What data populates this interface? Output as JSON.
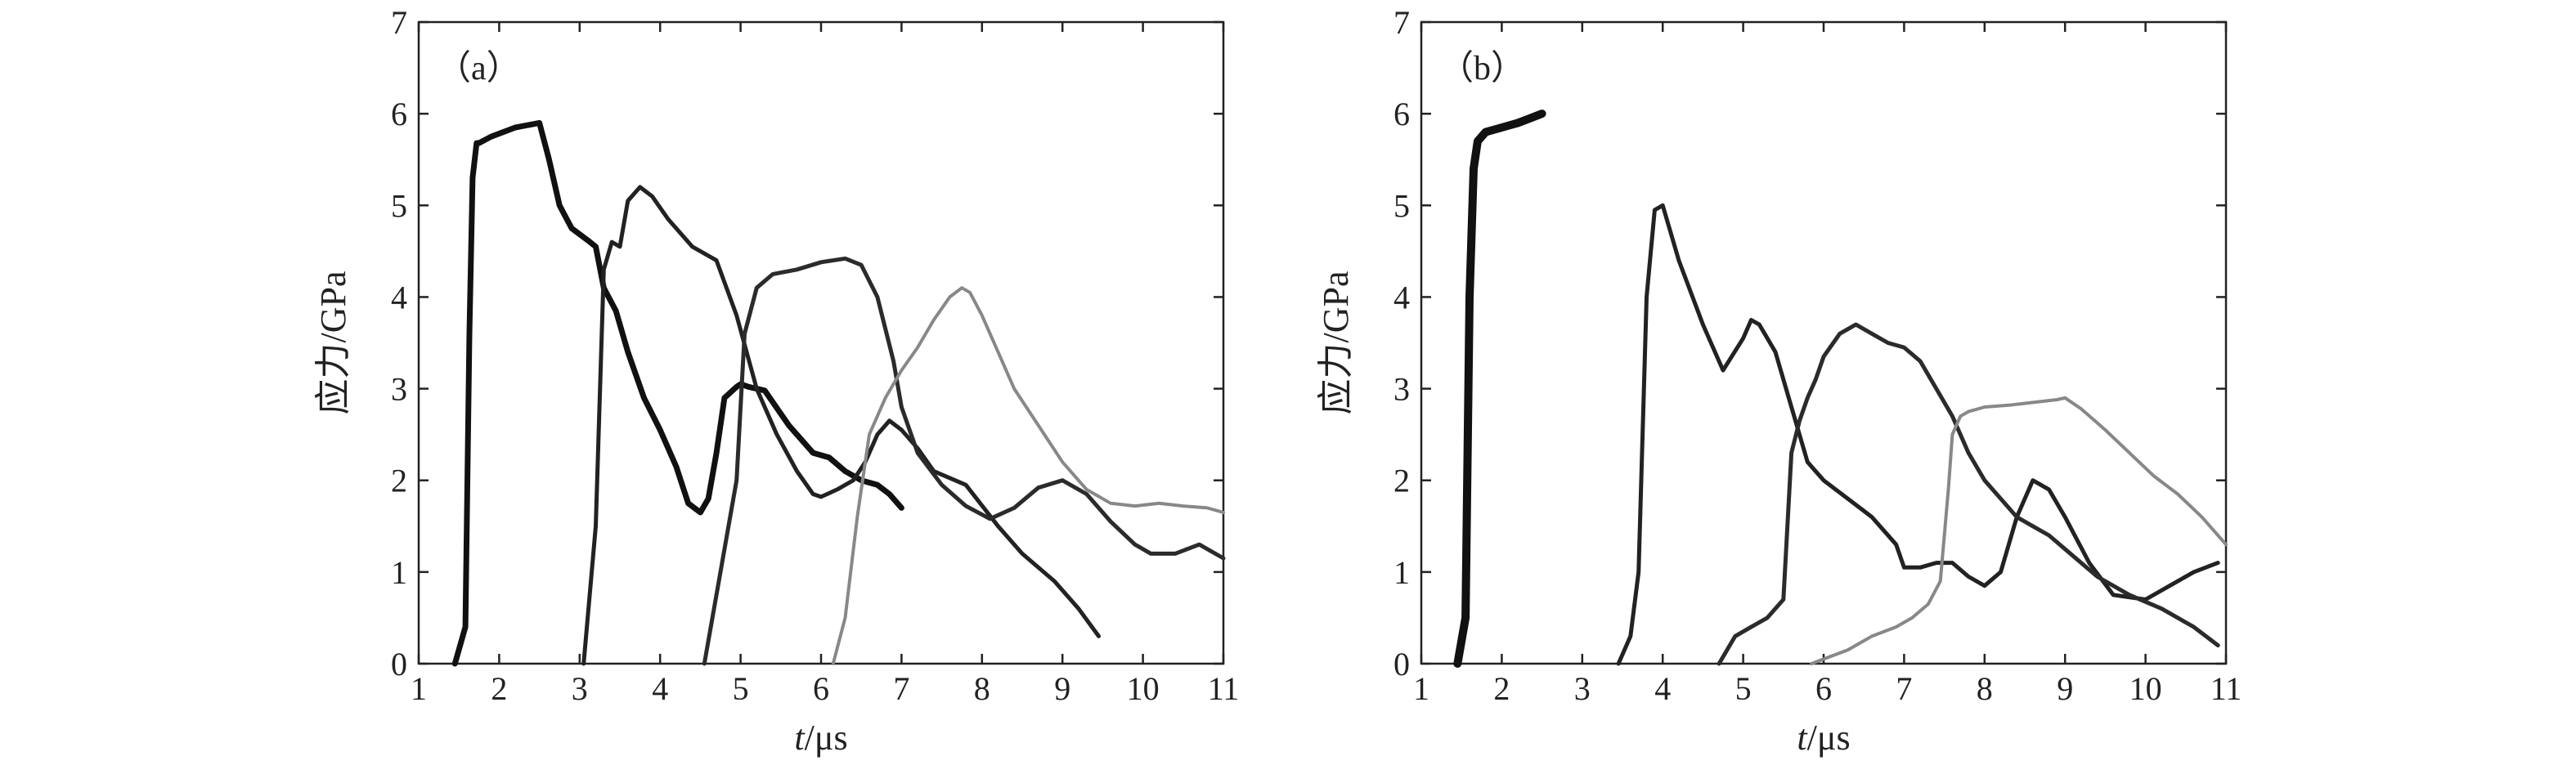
{
  "chart_data": [
    {
      "type": "line",
      "panel_label": "（a）",
      "xlabel_italic": "t",
      "xlabel_unit": "/μs",
      "ylabel": "应力/GPa",
      "xlim": [
        1,
        11
      ],
      "ylim": [
        0,
        7
      ],
      "xticks": [
        "1",
        "2",
        "3",
        "4",
        "5",
        "6",
        "7",
        "8",
        "9",
        "10",
        "11"
      ],
      "yticks": [
        "0",
        "1",
        "2",
        "3",
        "4",
        "5",
        "6",
        "7"
      ],
      "grid": false,
      "series": [
        {
          "color": "#111111",
          "width": 7,
          "x": [
            1.45,
            1.58,
            1.63,
            1.67,
            1.72,
            1.75,
            1.9,
            2.2,
            2.5,
            2.62,
            2.75,
            2.9,
            3.1,
            3.2,
            3.3,
            3.45,
            3.6,
            3.8,
            4.0,
            4.2,
            4.35,
            4.5,
            4.6,
            4.7,
            4.8,
            4.95,
            5.0,
            5.1,
            5.3,
            5.6,
            5.9,
            6.1,
            6.3,
            6.5,
            6.7,
            6.85,
            7.0
          ],
          "y": [
            0,
            0.4,
            3.6,
            5.3,
            5.68,
            5.68,
            5.75,
            5.85,
            5.9,
            5.5,
            5.0,
            4.75,
            4.62,
            4.55,
            4.1,
            3.85,
            3.4,
            2.9,
            2.55,
            2.15,
            1.75,
            1.65,
            1.8,
            2.3,
            2.9,
            3.02,
            3.05,
            3.02,
            2.98,
            2.6,
            2.3,
            2.25,
            2.1,
            2.0,
            1.95,
            1.85,
            1.7
          ]
        },
        {
          "color": "#222222",
          "width": 5,
          "x": [
            3.05,
            3.2,
            3.3,
            3.4,
            3.5,
            3.6,
            3.75,
            3.9,
            4.1,
            4.4,
            4.7,
            4.95,
            5.2,
            5.45,
            5.7,
            5.9,
            6.0,
            6.2,
            6.4,
            6.55,
            6.7,
            6.85,
            7.0,
            7.2,
            7.4,
            7.8,
            8.2,
            8.5,
            8.9,
            9.2,
            9.45
          ],
          "y": [
            0,
            1.5,
            4.3,
            4.6,
            4.55,
            5.05,
            5.2,
            5.1,
            4.85,
            4.55,
            4.4,
            3.8,
            3.0,
            2.5,
            2.1,
            1.85,
            1.82,
            1.9,
            2.0,
            2.2,
            2.5,
            2.65,
            2.55,
            2.35,
            2.1,
            1.95,
            1.5,
            1.2,
            0.9,
            0.6,
            0.3
          ]
        },
        {
          "color": "#2b2b2b",
          "width": 5,
          "x": [
            4.55,
            4.75,
            4.95,
            5.0,
            5.05,
            5.2,
            5.4,
            5.7,
            6.0,
            6.3,
            6.5,
            6.7,
            6.9,
            7.0,
            7.2,
            7.5,
            7.8,
            8.1,
            8.4,
            8.7,
            9.0,
            9.3,
            9.6,
            9.9,
            10.1,
            10.4,
            10.7,
            11.0
          ],
          "y": [
            0,
            1.0,
            2.0,
            2.8,
            3.6,
            4.1,
            4.25,
            4.3,
            4.38,
            4.42,
            4.35,
            4.0,
            3.3,
            2.8,
            2.3,
            1.95,
            1.72,
            1.58,
            1.7,
            1.92,
            2.0,
            1.85,
            1.55,
            1.3,
            1.2,
            1.2,
            1.3,
            1.15
          ]
        },
        {
          "color": "#888888",
          "width": 4,
          "x": [
            6.15,
            6.3,
            6.45,
            6.6,
            6.8,
            7.0,
            7.2,
            7.4,
            7.6,
            7.75,
            7.85,
            8.0,
            8.2,
            8.4,
            8.7,
            9.0,
            9.3,
            9.6,
            9.9,
            10.2,
            10.5,
            10.8,
            11.0
          ],
          "y": [
            0,
            0.5,
            1.6,
            2.5,
            2.9,
            3.2,
            3.45,
            3.75,
            4.0,
            4.1,
            4.05,
            3.8,
            3.4,
            3.0,
            2.6,
            2.2,
            1.9,
            1.75,
            1.72,
            1.75,
            1.72,
            1.7,
            1.65
          ]
        }
      ]
    },
    {
      "type": "line",
      "panel_label": "（b）",
      "xlabel_italic": "t",
      "xlabel_unit": "/μs",
      "ylabel": "应力/GPa",
      "xlim": [
        1,
        11
      ],
      "ylim": [
        0,
        7
      ],
      "xticks": [
        "1",
        "2",
        "3",
        "4",
        "5",
        "6",
        "7",
        "8",
        "9",
        "10",
        "11"
      ],
      "yticks": [
        "0",
        "1",
        "2",
        "3",
        "4",
        "5",
        "6",
        "7"
      ],
      "grid": false,
      "series": [
        {
          "color": "#111111",
          "width": 10,
          "x": [
            1.45,
            1.55,
            1.6,
            1.65,
            1.7,
            1.8,
            2.0,
            2.2,
            2.35,
            2.5
          ],
          "y": [
            0,
            0.5,
            4.0,
            5.4,
            5.7,
            5.8,
            5.85,
            5.9,
            5.95,
            6.0
          ]
        },
        {
          "color": "#222222",
          "width": 5,
          "x": [
            3.45,
            3.6,
            3.7,
            3.75,
            3.8,
            3.9,
            4.0,
            4.2,
            4.5,
            4.75,
            5.0,
            5.1,
            5.2,
            5.4,
            5.6,
            5.8,
            6.0,
            6.3,
            6.6,
            6.9,
            7.0,
            7.2,
            7.4,
            7.6,
            7.8,
            8.0,
            8.2,
            8.4,
            8.6,
            8.8,
            9.0,
            9.3,
            9.6,
            10.0,
            10.3,
            10.6,
            10.9
          ],
          "y": [
            0,
            0.3,
            1.0,
            2.5,
            4.0,
            4.95,
            5.0,
            4.4,
            3.7,
            3.2,
            3.55,
            3.75,
            3.7,
            3.4,
            2.8,
            2.2,
            2.0,
            1.8,
            1.6,
            1.3,
            1.05,
            1.05,
            1.1,
            1.1,
            0.95,
            0.85,
            1.0,
            1.6,
            2.0,
            1.9,
            1.6,
            1.1,
            0.75,
            0.7,
            0.85,
            1.0,
            1.1
          ]
        },
        {
          "color": "#2b2b2b",
          "width": 5,
          "x": [
            4.7,
            4.9,
            5.1,
            5.3,
            5.5,
            5.55,
            5.6,
            5.7,
            5.8,
            5.9,
            6.0,
            6.2,
            6.4,
            6.6,
            6.8,
            7.0,
            7.2,
            7.4,
            7.6,
            7.8,
            8.0,
            8.2,
            8.4,
            8.6,
            8.8,
            9.0,
            9.4,
            9.8,
            10.2,
            10.6,
            10.9
          ],
          "y": [
            0,
            0.3,
            0.4,
            0.5,
            0.7,
            1.5,
            2.3,
            2.65,
            2.9,
            3.1,
            3.35,
            3.6,
            3.7,
            3.6,
            3.5,
            3.45,
            3.3,
            3.0,
            2.7,
            2.3,
            2.0,
            1.8,
            1.6,
            1.5,
            1.4,
            1.25,
            0.95,
            0.75,
            0.6,
            0.4,
            0.2
          ]
        },
        {
          "color": "#888888",
          "width": 4,
          "x": [
            5.85,
            6.0,
            6.3,
            6.6,
            6.9,
            7.1,
            7.3,
            7.45,
            7.55,
            7.6,
            7.7,
            7.8,
            8.0,
            8.3,
            8.6,
            8.9,
            9.0,
            9.2,
            9.5,
            9.8,
            10.1,
            10.4,
            10.7,
            11.0
          ],
          "y": [
            0,
            0.05,
            0.15,
            0.3,
            0.4,
            0.5,
            0.65,
            0.9,
            1.9,
            2.5,
            2.7,
            2.75,
            2.8,
            2.82,
            2.85,
            2.88,
            2.9,
            2.78,
            2.55,
            2.3,
            2.05,
            1.85,
            1.6,
            1.3
          ]
        }
      ]
    }
  ]
}
